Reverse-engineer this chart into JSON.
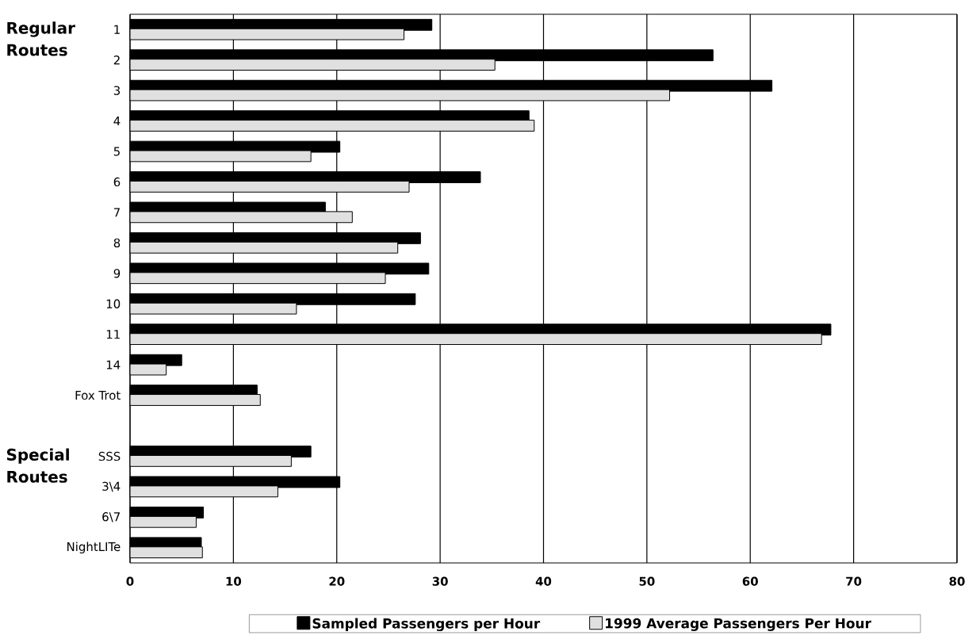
{
  "chart_data": {
    "type": "bar",
    "orientation": "horizontal",
    "categories": [
      "1",
      "2",
      "3",
      "4",
      "5",
      "6",
      "7",
      "8",
      "9",
      "10",
      "11",
      "14",
      "Fox Trot",
      null,
      "SSS",
      "3\\4",
      "6\\7",
      "NightLITe"
    ],
    "series": [
      {
        "name": "Sampled Passengers per Hour",
        "color": "#000000",
        "values": [
          29.2,
          56.4,
          62.1,
          38.6,
          20.3,
          33.9,
          18.9,
          28.1,
          28.9,
          27.6,
          67.8,
          5.0,
          12.3,
          null,
          17.5,
          20.3,
          7.1,
          6.9
        ]
      },
      {
        "name": "1999 Average Passengers Per Hour",
        "color": "#e0e0e0",
        "values": [
          26.5,
          35.3,
          52.2,
          39.1,
          17.5,
          27.0,
          21.5,
          25.9,
          24.7,
          16.1,
          66.9,
          3.5,
          12.6,
          null,
          15.6,
          14.3,
          6.4,
          7.0
        ]
      }
    ],
    "xlim": [
      0,
      80
    ],
    "xticks": [
      0,
      10,
      20,
      30,
      40,
      50,
      60,
      70,
      80
    ],
    "grid": "x",
    "legend": "bottom",
    "annotations": [
      "Regular Routes",
      "Special Routes"
    ]
  }
}
